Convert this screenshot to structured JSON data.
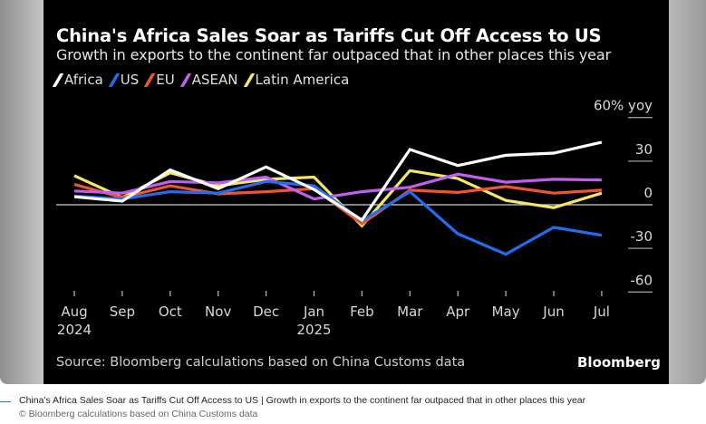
{
  "caption": {
    "text": "China's Africa Sales Soar as Tariffs Cut Off Access to US | Growth in exports to the continent far outpaced that in other places this year",
    "credit": "© Bloomberg calculations based on China Customs data"
  },
  "chart_data": {
    "type": "line",
    "title": "China's Africa Sales Soar as Tariffs Cut Off Access to US",
    "subtitle": "Growth in exports to the continent far outpaced that in other places this year",
    "source": "Source: Bloomberg calculations based on China Customs data",
    "brand": "Bloomberg",
    "xlabel": "",
    "ylabel": "",
    "y_unit_label": "60% yoy",
    "ylim": [
      -60,
      60
    ],
    "yticks": [
      60,
      30,
      0,
      -30,
      -60
    ],
    "ytick_labels": [
      "60% yoy",
      "30",
      "0",
      "-30",
      "-60"
    ],
    "categories": [
      "Aug",
      "Sep",
      "Oct",
      "Nov",
      "Dec",
      "Jan",
      "Feb",
      "Mar",
      "Apr",
      "May",
      "Jun",
      "Jul"
    ],
    "category_years": [
      "2024",
      "",
      "",
      "",
      "",
      "2025",
      "",
      "",
      "",
      "",
      "",
      ""
    ],
    "grid": false,
    "zero_line": true,
    "legend_position": "top-left",
    "series": [
      {
        "name": "Latin America",
        "color": "#f5e663",
        "values": [
          20,
          5,
          22,
          13,
          17.5,
          19,
          -14.5,
          23.5,
          18,
          3,
          -2,
          8
        ]
      },
      {
        "name": "EU",
        "color": "#f2542d",
        "values": [
          14,
          5,
          13,
          7.5,
          9,
          11,
          -13,
          10,
          8.5,
          12.5,
          8,
          10
        ]
      },
      {
        "name": "ASEAN",
        "color": "#c15ff0",
        "values": [
          9.5,
          8,
          16,
          15,
          19,
          4,
          9,
          12,
          21,
          15.5,
          17.5,
          17
        ]
      },
      {
        "name": "US",
        "color": "#1f6ff0",
        "values": [
          6,
          4,
          9,
          8,
          16,
          13,
          -11,
          9,
          -20,
          -34,
          -15.5,
          -21
        ]
      },
      {
        "name": "Africa",
        "color": "#ffffff",
        "values": [
          5.5,
          2.5,
          24,
          11,
          26,
          10.5,
          -10.5,
          38,
          27,
          34,
          35.5,
          43
        ]
      }
    ],
    "legend_order": [
      "Africa",
      "US",
      "EU",
      "ASEAN",
      "Latin America"
    ]
  }
}
